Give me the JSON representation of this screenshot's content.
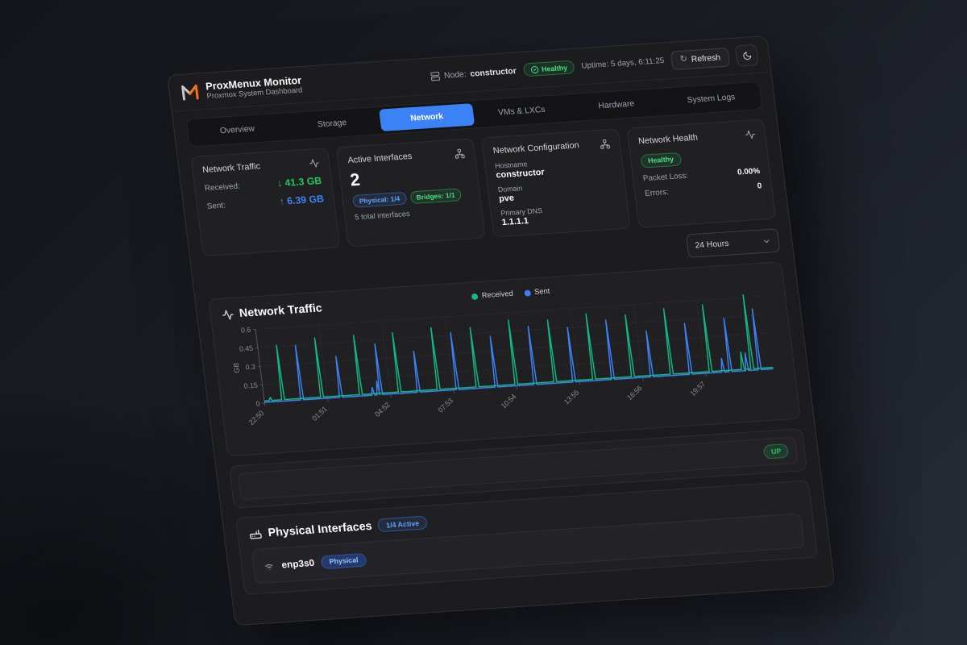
{
  "topbar": {
    "node_label": "Node:",
    "node_value": "constructor",
    "health_status": "Healthy",
    "uptime": "Uptime: 5 days, 6:11:25",
    "refresh_label": "Refresh"
  },
  "brand": {
    "title": "ProxMenux Monitor",
    "subtitle": "Proxmox System Dashboard"
  },
  "tabs": [
    {
      "label": "Overview",
      "active": false
    },
    {
      "label": "Storage",
      "active": false
    },
    {
      "label": "Network",
      "active": true
    },
    {
      "label": "VMs & LXCs",
      "active": false
    },
    {
      "label": "Hardware",
      "active": false
    },
    {
      "label": "System Logs",
      "active": false
    }
  ],
  "stat_cards": {
    "traffic": {
      "title": "Network Traffic",
      "received_label": "Received:",
      "received_value": "↓ 41.3 GB",
      "sent_label": "Sent:",
      "sent_value": "↑ 6.39 GB"
    },
    "interfaces": {
      "title": "Active Interfaces",
      "count": "2",
      "physical_badge": "Physical: 1/4",
      "bridges_badge": "Bridges: 1/1",
      "total": "5 total interfaces"
    },
    "config": {
      "title": "Network Configuration",
      "hostname_label": "Hostname",
      "hostname": "constructor",
      "domain_label": "Domain",
      "domain": "pve",
      "dns_label": "Primary DNS",
      "dns": "1.1.1.1"
    },
    "health": {
      "title": "Network Health",
      "status": "Healthy",
      "packet_loss_label": "Packet Loss:",
      "packet_loss": "0.00%",
      "errors_label": "Errors:",
      "errors": "0"
    }
  },
  "range_select": {
    "value": "24 Hours"
  },
  "chart_data": {
    "type": "line",
    "title": "Network Traffic",
    "ylabel": "GB",
    "x_hours": 24.35,
    "ylim": [
      0,
      0.6
    ],
    "y_ticks": [
      0,
      0.15,
      0.3,
      0.45,
      0.6
    ],
    "x_ticks": [
      {
        "t": 0.0,
        "label": "22:50"
      },
      {
        "t": 3.02,
        "label": "01:51"
      },
      {
        "t": 6.03,
        "label": "04:52"
      },
      {
        "t": 9.05,
        "label": "07:53"
      },
      {
        "t": 12.07,
        "label": "10:54"
      },
      {
        "t": 15.08,
        "label": "13:55"
      },
      {
        "t": 18.1,
        "label": "16:56"
      },
      {
        "t": 21.12,
        "label": "19:57"
      }
    ],
    "legend": [
      {
        "label": "Received",
        "color": "#10b981"
      },
      {
        "label": "Sent",
        "color": "#3b82f6"
      }
    ],
    "series": [
      {
        "name": "Sent",
        "color": "#3b82f6",
        "baseline": 0.008,
        "spikes": [
          [
            1.8,
            0.45
          ],
          [
            3.66,
            0.34
          ],
          [
            5.2,
            0.07
          ],
          [
            5.45,
            0.12
          ],
          [
            5.58,
            0.42
          ],
          [
            7.38,
            0.34
          ],
          [
            9.24,
            0.47
          ],
          [
            11.1,
            0.42
          ],
          [
            12.96,
            0.48
          ],
          [
            14.82,
            0.45
          ],
          [
            16.68,
            0.49
          ],
          [
            18.54,
            0.38
          ],
          [
            20.4,
            0.42
          ],
          [
            21.95,
            0.12
          ],
          [
            22.3,
            0.44
          ],
          [
            23.1,
            0.15
          ],
          [
            23.7,
            0.5
          ]
        ]
      },
      {
        "name": "Received",
        "color": "#10b981",
        "baseline": 0.02,
        "spikes": [
          [
            0.3,
            0.045
          ],
          [
            0.9,
            0.46
          ],
          [
            2.76,
            0.5
          ],
          [
            4.62,
            0.5
          ],
          [
            6.48,
            0.5
          ],
          [
            8.34,
            0.52
          ],
          [
            10.2,
            0.5
          ],
          [
            12.06,
            0.54
          ],
          [
            13.92,
            0.52
          ],
          [
            15.78,
            0.55
          ],
          [
            17.64,
            0.52
          ],
          [
            19.5,
            0.55
          ],
          [
            21.36,
            0.56
          ],
          [
            22.9,
            0.16
          ],
          [
            23.35,
            0.62
          ]
        ]
      }
    ]
  },
  "status_row": {
    "status": "UP"
  },
  "physical_section": {
    "title": "Physical Interfaces",
    "active_badge": "1/4 Active",
    "interfaces": [
      {
        "name": "enp3s0",
        "type_badge": "Physical"
      }
    ]
  },
  "colors": {
    "accent_blue": "#3b82f6",
    "green": "#22c55e",
    "orange_logo": "#f97316"
  }
}
